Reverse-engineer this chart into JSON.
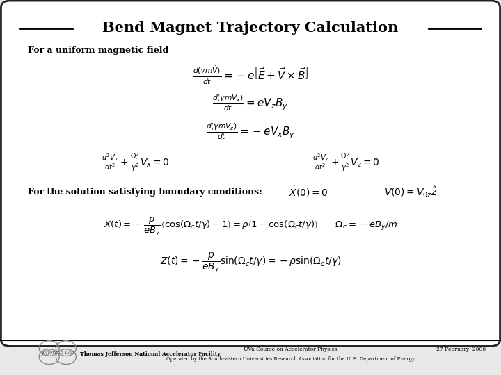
{
  "title": "Bend Magnet Trajectory Calculation",
  "bg_color": "#e8e8e8",
  "border_color": "#222222",
  "title_color": "#000000",
  "text_color": "#000000",
  "subtitle1": "For a uniform magnetic field",
  "subtitle2": "For the solution satisfying boundary conditions:",
  "footer_left": "Thomas Jefferson National Accelerator Facility",
  "footer_center1": "UVa Course on Accelerator Physics",
  "footer_center2": "Operated by the Southeastern Universities Research Association for the U. S. Department of Energy",
  "footer_right": "27 February  2006",
  "eq1": "$\\frac{d(\\gamma m\\dot{V})}{dt} = -e\\left[\\vec{E} + \\vec{V} \\times \\vec{B}\\right]$",
  "eq2": "$\\frac{d(\\gamma m V_x)}{dt} = eV_z B_y$",
  "eq3": "$\\frac{d(\\gamma m V_z)}{dt} = -eV_x B_y$",
  "eq4a": "$\\frac{d^2 V_x}{dt^2} + \\frac{\\Omega_c^2}{\\gamma^2}V_x = 0$",
  "eq4b": "$\\frac{d^2 V_z}{dt^2} + \\frac{\\Omega_c^2}{\\gamma^2}V_z = 0$",
  "eq_bc1": "$\\dot{X}(0) = 0$",
  "eq_bc2": "$\\dot{V}(0) = V_{0z}\\hat{z}$",
  "eq5": "$X(t) = -\\dfrac{p}{eB_y}\\left(\\cos(\\Omega_c t/\\gamma) - 1\\right) = \\rho\\left(1 - \\cos(\\Omega_c t/\\gamma)\\right) \\qquad \\Omega_c = -eB_y/m$",
  "eq6": "$Z(t) = -\\dfrac{p}{eB_y}\\sin(\\Omega_c t/\\gamma) = -\\rho\\sin(\\Omega_c t/\\gamma)$"
}
